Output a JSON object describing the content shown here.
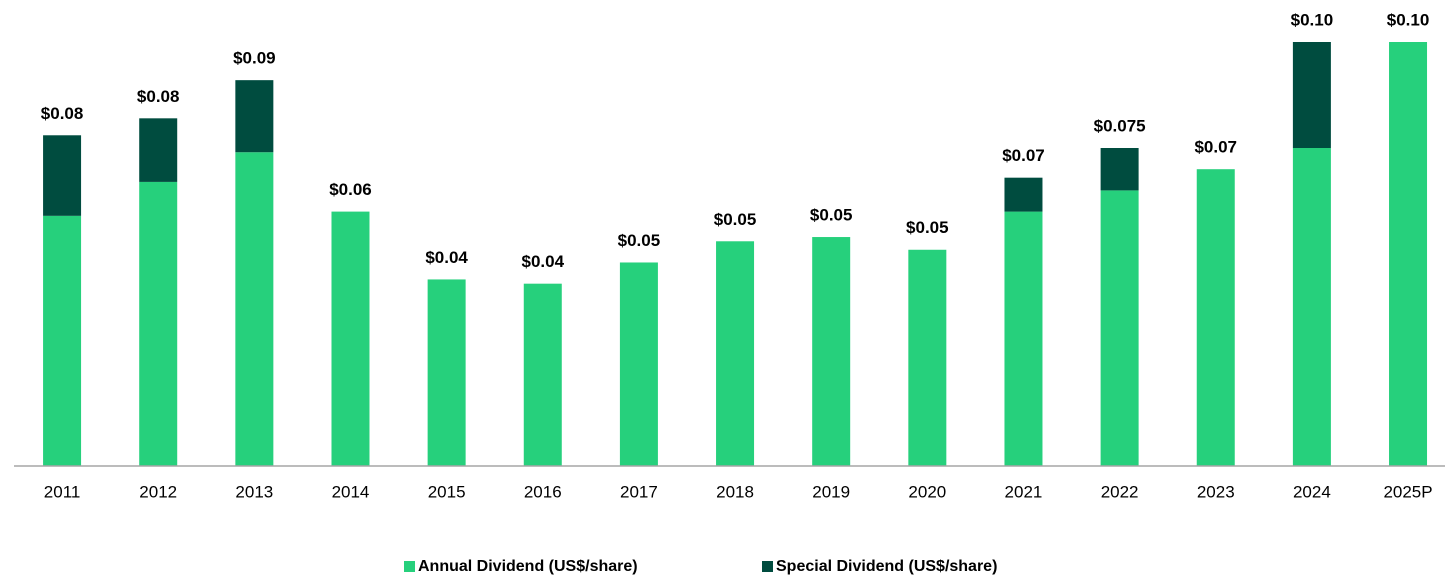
{
  "chart_data": {
    "type": "stacked_bar",
    "categories": [
      "2011",
      "2012",
      "2013",
      "2014",
      "2015",
      "2016",
      "2017",
      "2018",
      "2019",
      "2020",
      "2021",
      "2022",
      "2023",
      "2024",
      "2025P"
    ],
    "series": [
      {
        "name": "Annual Dividend (US$/share)",
        "color": "#26d07c",
        "values": [
          0.059,
          0.067,
          0.074,
          0.06,
          0.044,
          0.043,
          0.048,
          0.053,
          0.054,
          0.051,
          0.06,
          0.065,
          0.07,
          0.075,
          0.1
        ]
      },
      {
        "name": "Special Dividend (US$/share)",
        "color": "#004c3f",
        "values": [
          0.019,
          0.015,
          0.017,
          null,
          null,
          null,
          null,
          null,
          null,
          null,
          0.008,
          0.01,
          null,
          0.025,
          null
        ]
      }
    ],
    "totals": [
      0.078,
      0.082,
      0.091,
      0.06,
      0.044,
      0.043,
      0.048,
      0.053,
      0.054,
      0.051,
      0.068,
      0.075,
      0.07,
      0.1,
      0.1
    ],
    "total_labels": [
      "$0.08",
      "$0.08",
      "$0.09",
      "$0.06",
      "$0.04",
      "$0.04",
      "$0.05",
      "$0.05",
      "$0.05",
      "$0.05",
      "$0.07",
      "$0.075",
      "$0.07",
      "$0.10",
      "$0.10"
    ],
    "ylim": [
      0,
      0.1
    ],
    "legend": "bottom"
  }
}
